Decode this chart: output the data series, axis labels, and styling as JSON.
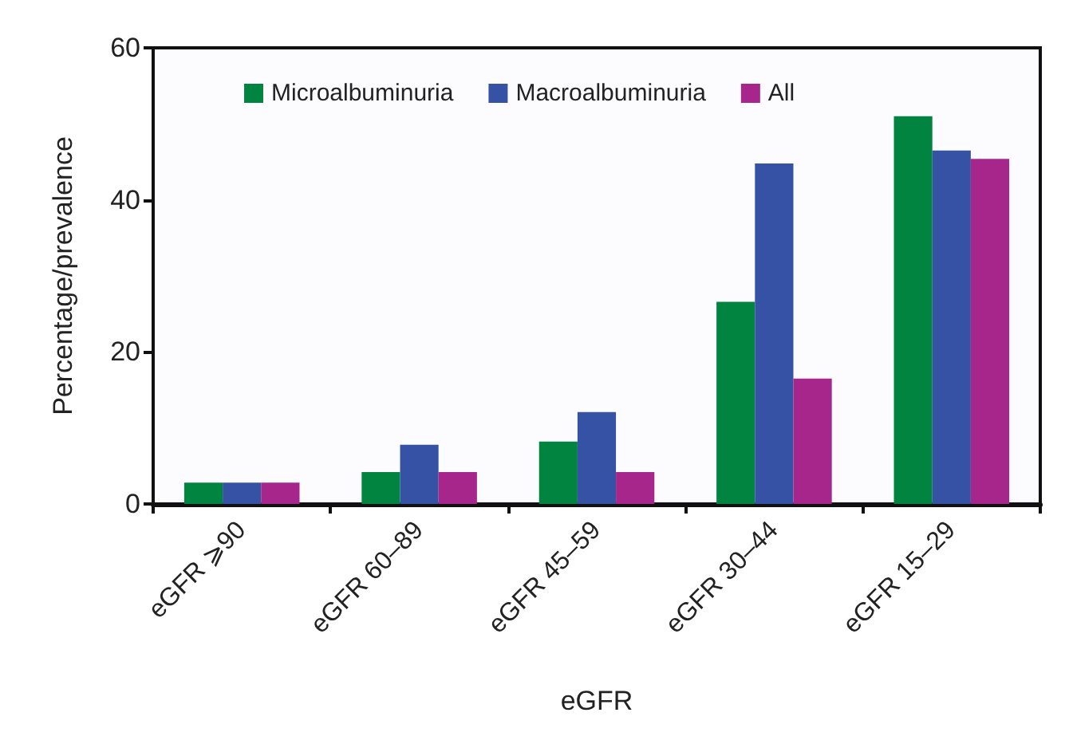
{
  "chart_data": {
    "type": "bar",
    "xlabel": "eGFR",
    "ylabel": "Percentage/prevalence",
    "categories": [
      "eGFR ⩾90",
      "eGFR 60–89",
      "eGFR 45–59",
      "eGFR 30–44",
      "eGFR 15–29"
    ],
    "series": [
      {
        "name": "Microalbuminuria",
        "color": "#008440",
        "values": [
          2.8,
          4.2,
          8.2,
          26.6,
          51
        ]
      },
      {
        "name": "Macroalbuminuria",
        "color": "#3652a4",
        "values": [
          2.8,
          7.8,
          12.1,
          44.8,
          46.5
        ]
      },
      {
        "name": "All",
        "color": "#a7268c",
        "values": [
          2.8,
          4.2,
          4.2,
          16.5,
          45.4
        ]
      }
    ],
    "ylim": [
      0,
      60
    ],
    "yticks": [
      0,
      20,
      40,
      60
    ],
    "legend": "top",
    "grid": false
  }
}
